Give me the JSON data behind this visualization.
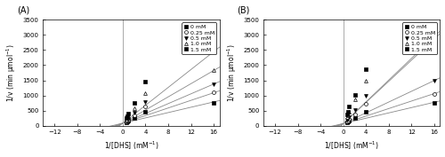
{
  "panels": [
    {
      "label": "(A)",
      "series": [
        {
          "inhibitor": "0 mM",
          "marker": "s",
          "mfc": "black",
          "x_data": [
            0.667,
            0.8,
            1.0,
            2.0,
            4.0,
            16.0
          ],
          "y_data": [
            110,
            130,
            155,
            260,
            460,
            760
          ],
          "slope": 44.0,
          "intercept": 80.0
        },
        {
          "inhibitor": "0.25 mM",
          "marker": "o",
          "mfc": "white",
          "x_data": [
            0.667,
            0.8,
            1.0,
            2.0,
            4.0,
            16.0
          ],
          "y_data": [
            130,
            155,
            195,
            340,
            640,
            1100
          ],
          "slope": 63.0,
          "intercept": 80.0
        },
        {
          "inhibitor": "0.5 mM",
          "marker": "v",
          "mfc": "black",
          "x_data": [
            0.667,
            0.8,
            1.0,
            2.0,
            4.0,
            16.0
          ],
          "y_data": [
            155,
            185,
            235,
            420,
            790,
            1360
          ],
          "slope": 81.0,
          "intercept": 80.0
        },
        {
          "inhibitor": "1.0 mM",
          "marker": "^",
          "mfc": "white",
          "x_data": [
            0.667,
            0.8,
            1.0,
            2.0,
            4.0,
            16.0
          ],
          "y_data": [
            200,
            245,
            310,
            565,
            1080,
            1830
          ],
          "slope": 109.0,
          "intercept": 80.0
        },
        {
          "inhibitor": "1.5 mM",
          "marker": "s",
          "mfc": "black",
          "x_data": [
            0.667,
            0.8,
            1.0,
            2.0,
            4.0,
            16.0
          ],
          "y_data": [
            255,
            315,
            410,
            760,
            1450,
            2450
          ],
          "slope": 148.0,
          "intercept": 80.0
        }
      ]
    },
    {
      "label": "(B)",
      "series": [
        {
          "inhibitor": "0 mM",
          "marker": "s",
          "mfc": "black",
          "x_data": [
            0.667,
            0.8,
            1.0,
            2.0,
            4.0,
            16.0
          ],
          "y_data": [
            110,
            130,
            155,
            260,
            460,
            760
          ],
          "slope": 44.0,
          "intercept": 70.0
        },
        {
          "inhibitor": "0.25 mM",
          "marker": "o",
          "mfc": "white",
          "x_data": [
            0.667,
            0.8,
            1.0,
            2.0,
            4.0,
            16.0
          ],
          "y_data": [
            140,
            170,
            215,
            385,
            710,
            1060
          ],
          "slope": 62.0,
          "intercept": 70.0
        },
        {
          "inhibitor": "0.5 mM",
          "marker": "v",
          "mfc": "black",
          "x_data": [
            0.667,
            0.8,
            1.0,
            2.0,
            4.0,
            16.0
          ],
          "y_data": [
            185,
            230,
            295,
            530,
            1000,
            1480
          ],
          "slope": 89.0,
          "intercept": 70.0
        },
        {
          "inhibitor": "1.0 mM",
          "marker": "^",
          "mfc": "white",
          "x_data": [
            0.667,
            0.8,
            1.0,
            2.0,
            4.0,
            16.0
          ],
          "y_data": [
            270,
            345,
            460,
            860,
            1490,
            2900
          ],
          "slope": 175.0,
          "intercept": 70.0
        },
        {
          "inhibitor": "1.5 mM",
          "marker": "s",
          "mfc": "black",
          "x_data": [
            0.667,
            0.8,
            1.0,
            2.0,
            4.0,
            16.0
          ],
          "y_data": [
            360,
            465,
            640,
            1020,
            1860,
            2960
          ],
          "slope": 180.0,
          "intercept": 70.0
        }
      ]
    }
  ],
  "xlim": [
    -14,
    17
  ],
  "ylim": [
    0,
    3500
  ],
  "xticks": [
    -12,
    -8,
    -4,
    0,
    4,
    8,
    12,
    16
  ],
  "yticks": [
    0,
    500,
    1000,
    1500,
    2000,
    2500,
    3000,
    3500
  ],
  "xlabel": "1/[DHS] (mM$^{-1}$)",
  "ylabel": "1/v (min μmol$^{-1}$)",
  "x_line_start": -14,
  "x_line_end": 17,
  "vline_x": 0,
  "legend_labels": [
    "0 mM",
    "0.25 mM",
    "0.5 mM",
    "1.0 mM",
    "1.5 mM"
  ],
  "legend_markers": [
    "s",
    "o",
    "v",
    "^",
    "s"
  ],
  "legend_mfc": [
    "black",
    "white",
    "black",
    "white",
    "black"
  ],
  "bg_color": "white",
  "line_color": "#888888",
  "fontsize_label": 5.5,
  "fontsize_tick": 5.0,
  "fontsize_legend": 4.5,
  "fontsize_panel": 7
}
